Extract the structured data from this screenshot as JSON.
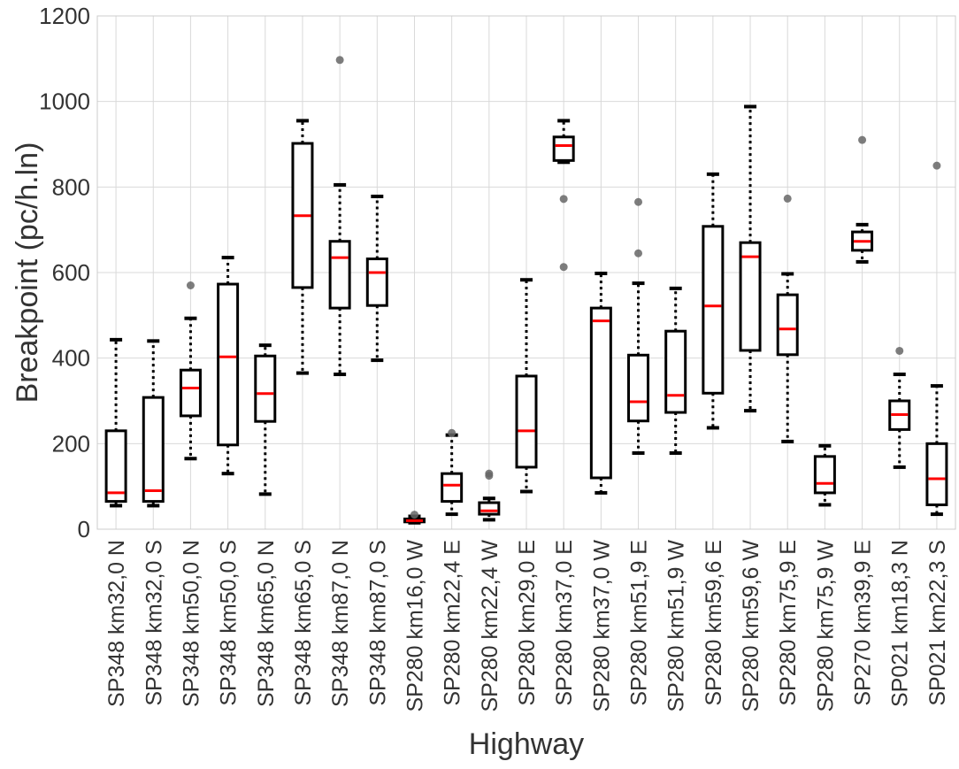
{
  "chart_data": {
    "type": "box",
    "title": "",
    "xlabel": "Highway",
    "ylabel": "Breakpoint (pc/h.ln)",
    "ylim": [
      0,
      1200
    ],
    "yticks": [
      0,
      200,
      400,
      600,
      800,
      1000,
      1200
    ],
    "grid": true,
    "colors": {
      "box": "#000000",
      "median": "#ff0000",
      "outlier": "#666666",
      "grid": "#d9d9d9"
    },
    "categories": [
      {
        "label": "SP348 km32,0 N",
        "whisker_low": 55,
        "q1": 65,
        "median": 85,
        "q3": 230,
        "whisker_high": 443,
        "outliers": []
      },
      {
        "label": "SP348 km32,0 S",
        "whisker_low": 55,
        "q1": 65,
        "median": 90,
        "q3": 308,
        "whisker_high": 440,
        "outliers": []
      },
      {
        "label": "SP348 km50,0 N",
        "whisker_low": 165,
        "q1": 265,
        "median": 330,
        "q3": 372,
        "whisker_high": 493,
        "outliers": [
          570
        ]
      },
      {
        "label": "SP348 km50,0 S",
        "whisker_low": 130,
        "q1": 197,
        "median": 403,
        "q3": 573,
        "whisker_high": 635,
        "outliers": []
      },
      {
        "label": "SP348 km65,0 N",
        "whisker_low": 82,
        "q1": 252,
        "median": 317,
        "q3": 405,
        "whisker_high": 430,
        "outliers": []
      },
      {
        "label": "SP348 km65,0 S",
        "whisker_low": 365,
        "q1": 565,
        "median": 733,
        "q3": 902,
        "whisker_high": 955,
        "outliers": []
      },
      {
        "label": "SP348 km87,0 N",
        "whisker_low": 362,
        "q1": 517,
        "median": 635,
        "q3": 673,
        "whisker_high": 805,
        "outliers": [
          1097
        ]
      },
      {
        "label": "SP348 km87,0 S",
        "whisker_low": 395,
        "q1": 523,
        "median": 600,
        "q3": 632,
        "whisker_high": 778,
        "outliers": []
      },
      {
        "label": "SP280 km16,0 W",
        "whisker_low": 15,
        "q1": 17,
        "median": 20,
        "q3": 24,
        "whisker_high": 30,
        "outliers": [
          34
        ]
      },
      {
        "label": "SP280 km22,4 E",
        "whisker_low": 35,
        "q1": 65,
        "median": 103,
        "q3": 130,
        "whisker_high": 220,
        "outliers": [
          225
        ]
      },
      {
        "label": "SP280 km22,4 W",
        "whisker_low": 22,
        "q1": 35,
        "median": 43,
        "q3": 62,
        "whisker_high": 72,
        "outliers": [
          125,
          130
        ]
      },
      {
        "label": "SP280 km29,0 E",
        "whisker_low": 88,
        "q1": 145,
        "median": 230,
        "q3": 358,
        "whisker_high": 583,
        "outliers": []
      },
      {
        "label": "SP280 km37,0 E",
        "whisker_low": 858,
        "q1": 862,
        "median": 897,
        "q3": 917,
        "whisker_high": 955,
        "outliers": [
          772,
          613
        ]
      },
      {
        "label": "SP280 km37,0 W",
        "whisker_low": 85,
        "q1": 120,
        "median": 487,
        "q3": 517,
        "whisker_high": 598,
        "outliers": []
      },
      {
        "label": "SP280 km51,9 E",
        "whisker_low": 178,
        "q1": 253,
        "median": 298,
        "q3": 407,
        "whisker_high": 575,
        "outliers": [
          645,
          765
        ]
      },
      {
        "label": "SP280 km51,9 W",
        "whisker_low": 178,
        "q1": 273,
        "median": 313,
        "q3": 463,
        "whisker_high": 563,
        "outliers": []
      },
      {
        "label": "SP280 km59,6 E",
        "whisker_low": 237,
        "q1": 318,
        "median": 522,
        "q3": 708,
        "whisker_high": 830,
        "outliers": []
      },
      {
        "label": "SP280 km59,6 W",
        "whisker_low": 277,
        "q1": 418,
        "median": 637,
        "q3": 670,
        "whisker_high": 988,
        "outliers": []
      },
      {
        "label": "SP280 km75,9 E",
        "whisker_low": 205,
        "q1": 408,
        "median": 468,
        "q3": 548,
        "whisker_high": 597,
        "outliers": [
          773
        ]
      },
      {
        "label": "SP280 km75,9 W",
        "whisker_low": 57,
        "q1": 85,
        "median": 107,
        "q3": 170,
        "whisker_high": 195,
        "outliers": []
      },
      {
        "label": "SP270 km39,9 E",
        "whisker_low": 625,
        "q1": 652,
        "median": 673,
        "q3": 695,
        "whisker_high": 712,
        "outliers": [
          910
        ]
      },
      {
        "label": "SP021 km18,3 N",
        "whisker_low": 145,
        "q1": 233,
        "median": 268,
        "q3": 300,
        "whisker_high": 362,
        "outliers": [
          417
        ]
      },
      {
        "label": "SP021 km22,3 S",
        "whisker_low": 35,
        "q1": 57,
        "median": 118,
        "q3": 200,
        "whisker_high": 335,
        "outliers": [
          850
        ]
      }
    ]
  }
}
